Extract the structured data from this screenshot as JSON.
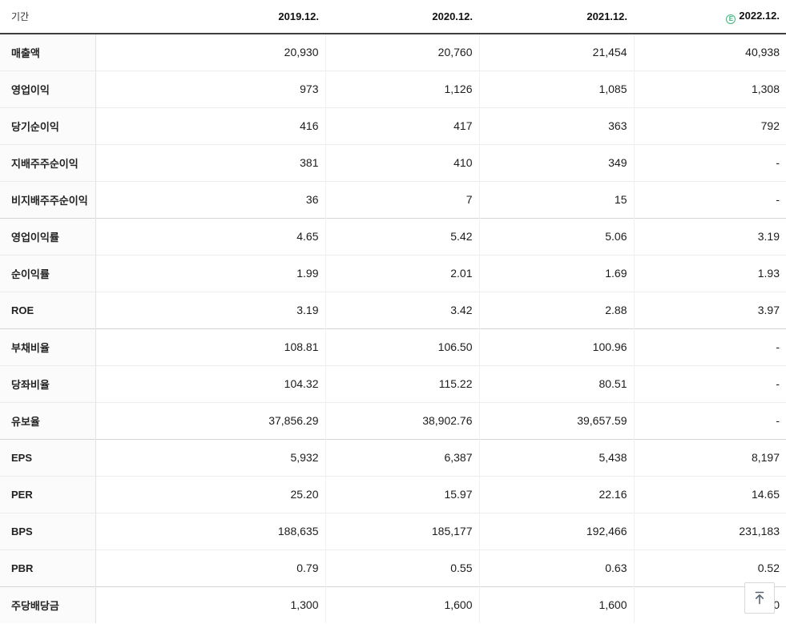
{
  "table": {
    "header": {
      "period_label": "기간",
      "columns": [
        "2019.12.",
        "2020.12.",
        "2021.12.",
        "2022.12."
      ],
      "estimate_column_index": 3,
      "estimate_icon_letter": "E"
    },
    "rows": [
      {
        "label": "매출액",
        "values": [
          "20,930",
          "20,760",
          "21,454",
          "40,938"
        ],
        "group_start": false
      },
      {
        "label": "영업이익",
        "values": [
          "973",
          "1,126",
          "1,085",
          "1,308"
        ],
        "group_start": false
      },
      {
        "label": "당기순이익",
        "values": [
          "416",
          "417",
          "363",
          "792"
        ],
        "group_start": false
      },
      {
        "label": "지배주주순이익",
        "values": [
          "381",
          "410",
          "349",
          "-"
        ],
        "group_start": false
      },
      {
        "label": "비지배주주순이익",
        "values": [
          "36",
          "7",
          "15",
          "-"
        ],
        "group_start": false
      },
      {
        "label": "영업이익률",
        "values": [
          "4.65",
          "5.42",
          "5.06",
          "3.19"
        ],
        "group_start": true
      },
      {
        "label": "순이익률",
        "values": [
          "1.99",
          "2.01",
          "1.69",
          "1.93"
        ],
        "group_start": false
      },
      {
        "label": "ROE",
        "values": [
          "3.19",
          "3.42",
          "2.88",
          "3.97"
        ],
        "group_start": false
      },
      {
        "label": "부채비율",
        "values": [
          "108.81",
          "106.50",
          "100.96",
          "-"
        ],
        "group_start": true
      },
      {
        "label": "당좌비율",
        "values": [
          "104.32",
          "115.22",
          "80.51",
          "-"
        ],
        "group_start": false
      },
      {
        "label": "유보율",
        "values": [
          "37,856.29",
          "38,902.76",
          "39,657.59",
          "-"
        ],
        "group_start": false
      },
      {
        "label": "EPS",
        "values": [
          "5,932",
          "6,387",
          "5,438",
          "8,197"
        ],
        "group_start": true
      },
      {
        "label": "PER",
        "values": [
          "25.20",
          "15.97",
          "22.16",
          "14.65"
        ],
        "group_start": false
      },
      {
        "label": "BPS",
        "values": [
          "188,635",
          "185,177",
          "192,466",
          "231,183"
        ],
        "group_start": false
      },
      {
        "label": "PBR",
        "values": [
          "0.79",
          "0.55",
          "0.63",
          "0.52"
        ],
        "group_start": false
      },
      {
        "label": "주당배당금",
        "values": [
          "1,300",
          "1,600",
          "1,600",
          "0"
        ],
        "group_start": true
      }
    ]
  },
  "scroll_top_button": {
    "icon": "scroll-to-top-icon"
  },
  "colors": {
    "estimate_green": "#3cb879",
    "header_rule": "#3e3e3e",
    "row_border": "#ececec",
    "group_border": "#d5d5d5",
    "label_bg": "#fbfbfb",
    "text": "#1c1c1c"
  }
}
